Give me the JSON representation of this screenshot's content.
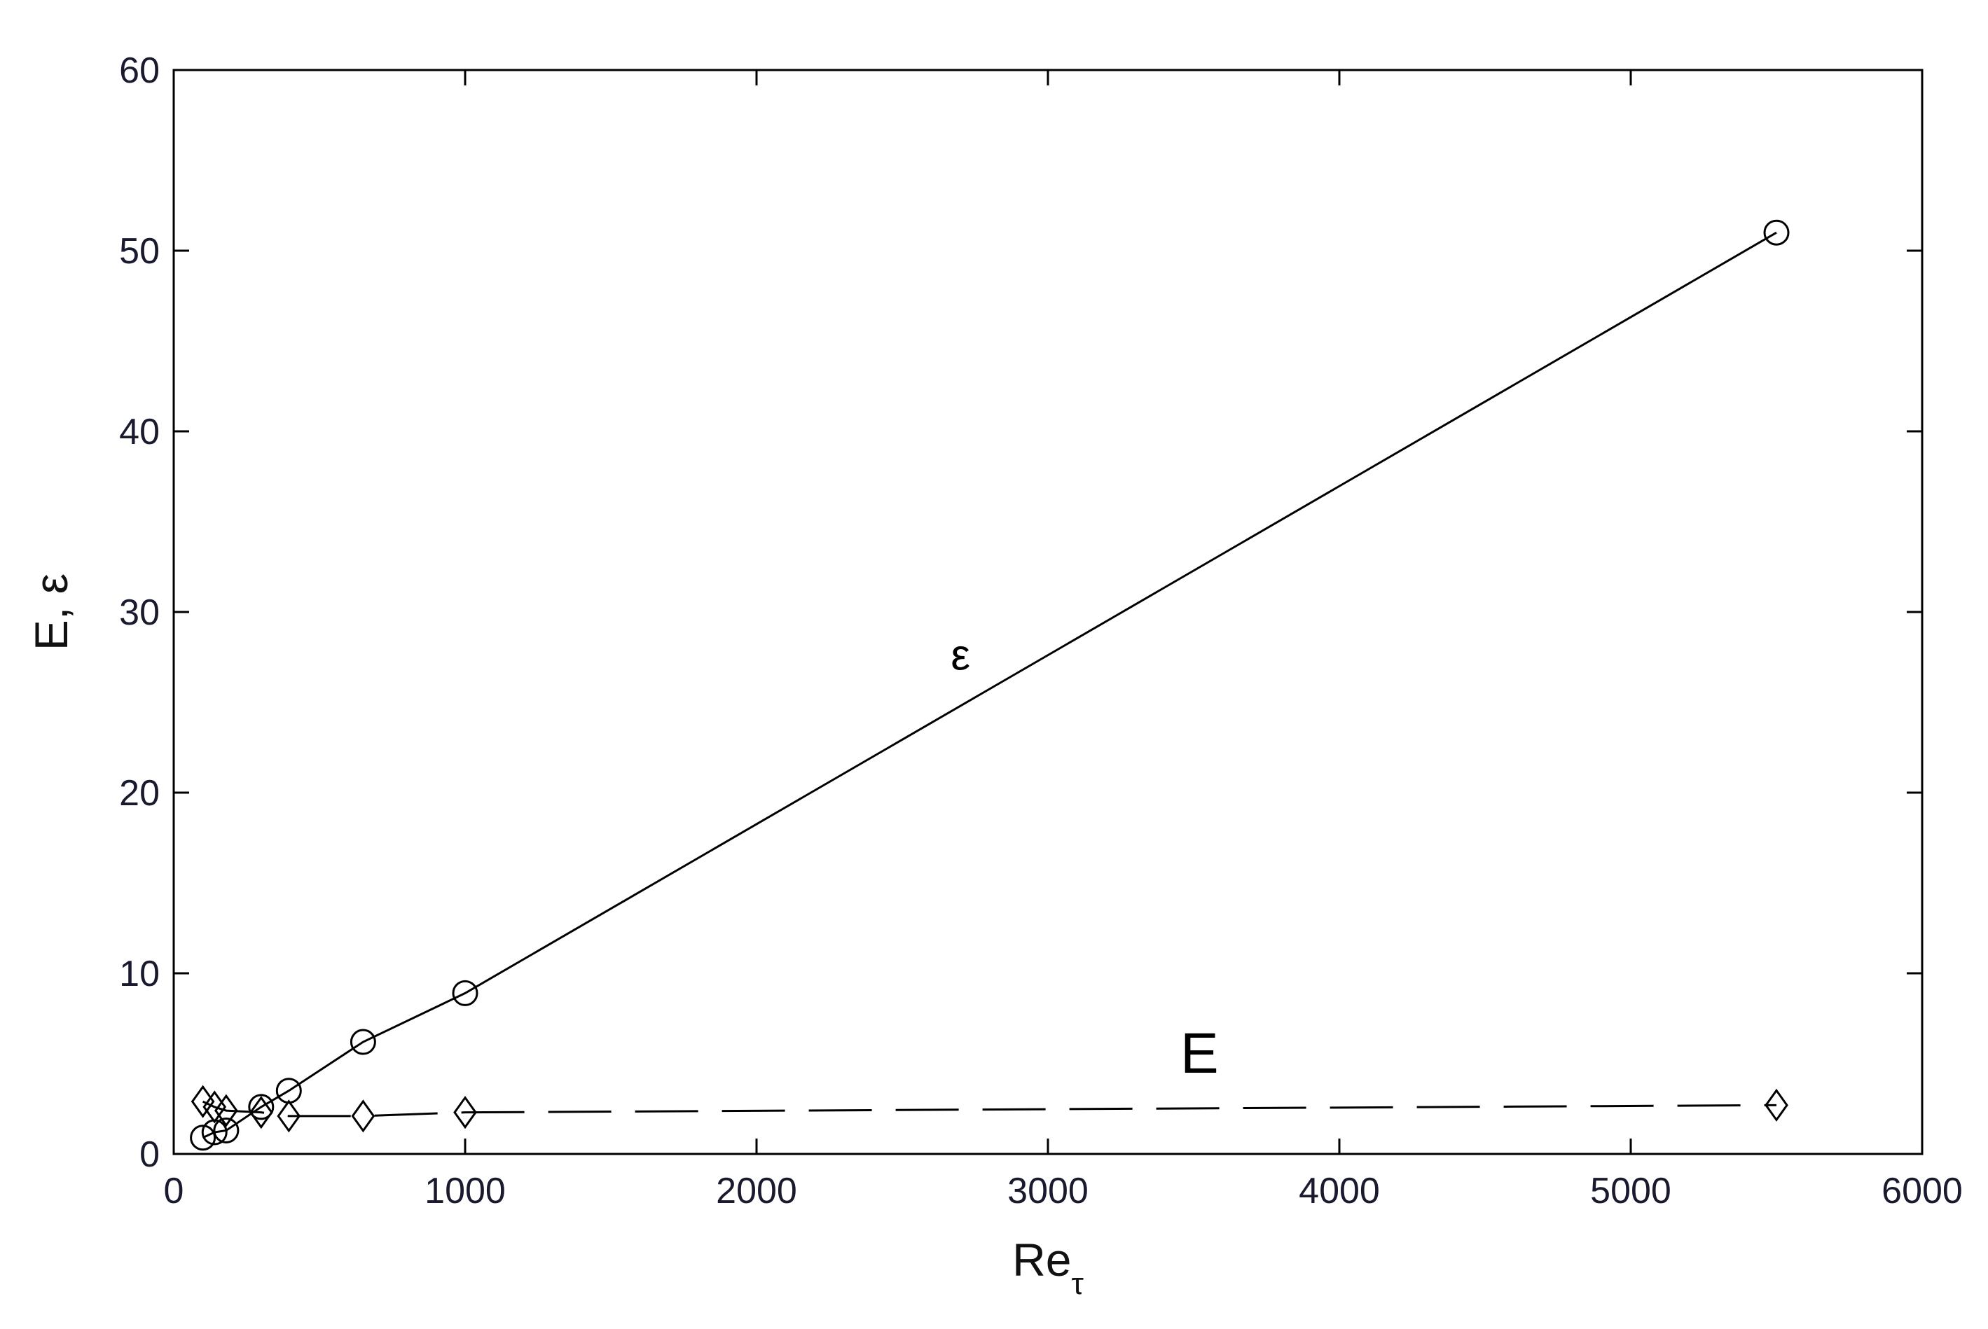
{
  "chart_data": {
    "type": "line",
    "xlabel": "Re",
    "xlabel_subscript": "τ",
    "ylabel": "E, ε",
    "xlim": [
      0,
      6000
    ],
    "ylim": [
      0,
      60
    ],
    "xticks": [
      0,
      1000,
      2000,
      3000,
      4000,
      5000,
      6000
    ],
    "yticks": [
      0,
      10,
      20,
      30,
      40,
      50,
      60
    ],
    "grid": false,
    "colors": {
      "line": "#000000",
      "frame": "#000000"
    },
    "series": [
      {
        "label": "ε",
        "marker": "circle",
        "line_style": "solid",
        "x": [
          100,
          140,
          180,
          300,
          395,
          650,
          1000,
          5500
        ],
        "y": [
          0.9,
          1.2,
          1.3,
          2.6,
          3.5,
          6.2,
          8.9,
          51.0
        ]
      },
      {
        "label": "E",
        "marker": "diamond",
        "line_style": "dashed",
        "x": [
          100,
          140,
          180,
          300,
          395,
          650,
          1000,
          5500
        ],
        "y": [
          2.9,
          2.6,
          2.4,
          2.3,
          2.1,
          2.1,
          2.3,
          2.7
        ]
      }
    ],
    "annotations": [
      {
        "text": "ε",
        "x": 2700,
        "y": 26.8
      },
      {
        "text": "E",
        "x": 3520,
        "y": 4.5
      }
    ]
  }
}
